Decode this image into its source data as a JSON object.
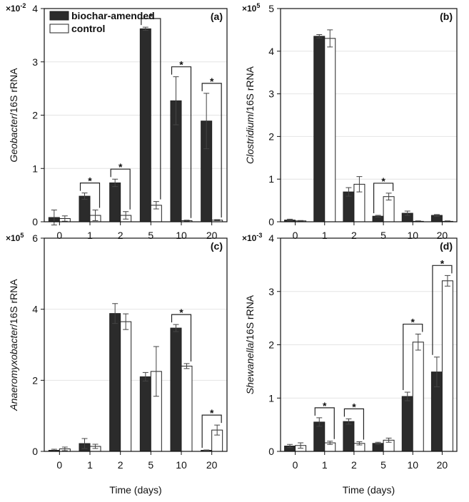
{
  "chart_data": [
    {
      "type": "bar",
      "label": "(a)",
      "scale_label": {
        "base": "×10",
        "exp": "-2"
      },
      "ylabel": {
        "italic": "Geobacter",
        "text": "/16S rRNA"
      },
      "categories": [
        "0",
        "1",
        "2",
        "5",
        "10",
        "20"
      ],
      "series": [
        {
          "name": "biochar-amended",
          "color": "#2b2b2b",
          "values": [
            0.08,
            0.48,
            0.73,
            3.62,
            2.27,
            1.89
          ],
          "errors": [
            0.14,
            0.06,
            0.07,
            0.03,
            0.45,
            0.52
          ]
        },
        {
          "name": "control",
          "color": "#ffffff",
          "values": [
            0.06,
            0.12,
            0.12,
            0.31,
            0.02,
            0.03
          ],
          "errors": [
            0.05,
            0.1,
            0.07,
            0.07,
            0.01,
            0.01
          ]
        }
      ],
      "significant": [
        false,
        true,
        true,
        true,
        true,
        true
      ],
      "annotation_text": "*",
      "ylim": [
        0,
        4
      ],
      "yticks": [
        0,
        1,
        2,
        3,
        4
      ],
      "grid": true,
      "legend": "upper left"
    },
    {
      "type": "bar",
      "label": "(b)",
      "scale_label": {
        "base": "×10",
        "exp": "5"
      },
      "ylabel": {
        "italic": "Clostridium",
        "text": "/16S rRNA"
      },
      "categories": [
        "0",
        "1",
        "2",
        "5",
        "10",
        "20"
      ],
      "series": [
        {
          "color": "#2b2b2b",
          "values": [
            0.04,
            4.35,
            0.7,
            0.13,
            0.2,
            0.15
          ],
          "errors": [
            0.02,
            0.04,
            0.1,
            0.02,
            0.05,
            0.02
          ]
        },
        {
          "color": "#ffffff",
          "values": [
            0.02,
            4.3,
            0.88,
            0.59,
            0.01,
            0.01
          ],
          "errors": [
            0.01,
            0.2,
            0.18,
            0.08,
            0.01,
            0.01
          ]
        }
      ],
      "significant": [
        false,
        false,
        false,
        true,
        false,
        false
      ],
      "annotation_text": "*",
      "ylim": [
        0,
        5
      ],
      "yticks": [
        0,
        1,
        2,
        3,
        4,
        5
      ],
      "grid": true
    },
    {
      "type": "bar",
      "label": "(c)",
      "scale_label": {
        "base": "×10",
        "exp": "5"
      },
      "ylabel": {
        "italic": "Anaeromyxobacter",
        "text": "/16S rRNA"
      },
      "xlabel": "Time (days)",
      "categories": [
        "0",
        "1",
        "2",
        "5",
        "10",
        "20"
      ],
      "series": [
        {
          "color": "#2b2b2b",
          "values": [
            0.03,
            0.22,
            3.88,
            2.1,
            3.47,
            0.03
          ],
          "errors": [
            0.03,
            0.14,
            0.28,
            0.12,
            0.1,
            0.01
          ]
        },
        {
          "color": "#ffffff",
          "values": [
            0.07,
            0.14,
            3.65,
            2.25,
            2.4,
            0.6
          ],
          "errors": [
            0.05,
            0.06,
            0.22,
            0.7,
            0.07,
            0.14
          ]
        }
      ],
      "significant": [
        false,
        false,
        false,
        false,
        true,
        true
      ],
      "annotation_text": "*",
      "ylim": [
        0,
        6
      ],
      "yticks": [
        0,
        2,
        4,
        6
      ],
      "grid": true
    },
    {
      "type": "bar",
      "label": "(d)",
      "scale_label": {
        "base": "×10",
        "exp": "-3"
      },
      "ylabel": {
        "italic": "Shewanella",
        "text": "/16S rRNA"
      },
      "xlabel": "Time (days)",
      "categories": [
        "0",
        "1",
        "2",
        "5",
        "10",
        "20"
      ],
      "series": [
        {
          "color": "#2b2b2b",
          "values": [
            0.1,
            0.55,
            0.56,
            0.15,
            1.03,
            1.49
          ],
          "errors": [
            0.03,
            0.08,
            0.05,
            0.02,
            0.08,
            0.28
          ]
        },
        {
          "color": "#ffffff",
          "values": [
            0.11,
            0.16,
            0.15,
            0.21,
            2.05,
            3.2
          ],
          "errors": [
            0.05,
            0.03,
            0.03,
            0.04,
            0.15,
            0.1
          ]
        }
      ],
      "significant": [
        false,
        true,
        true,
        false,
        true,
        true
      ],
      "annotation_text": "*",
      "ylim": [
        0,
        4
      ],
      "yticks": [
        0,
        1,
        2,
        3,
        4
      ],
      "grid": true
    }
  ]
}
